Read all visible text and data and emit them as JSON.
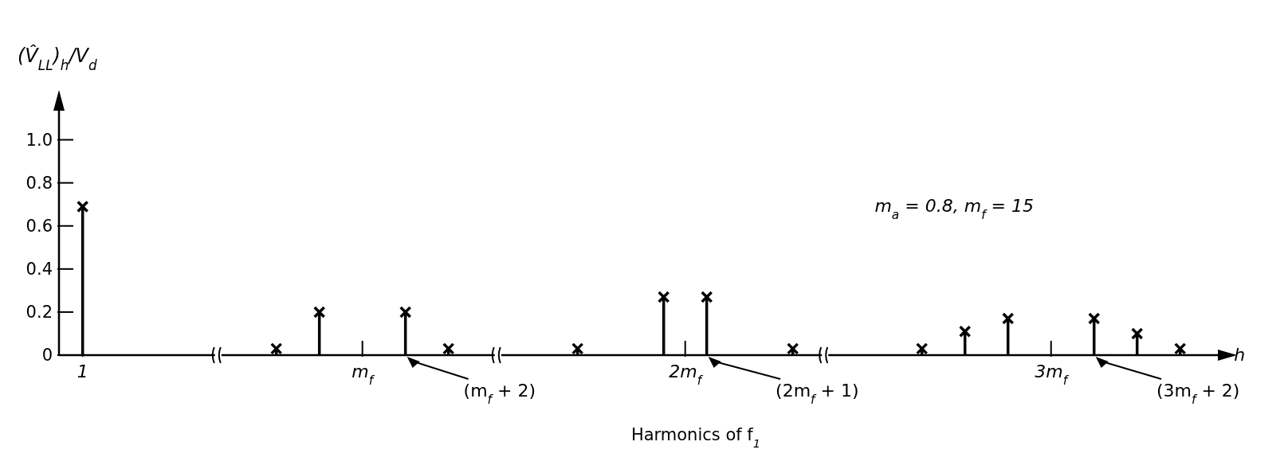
{
  "chart_data": {
    "type": "lollipop",
    "xlabel": "Harmonics of f$_{1}$",
    "ylabel": "(V̂$_{LL}$)$_{h}$/V$_{d}$",
    "categories": [
      "1",
      null,
      null,
      null,
      null,
      null,
      null,
      null,
      null,
      null,
      null,
      null,
      null,
      "m$_{f}$",
      null,
      null,
      null,
      null,
      null,
      null,
      null,
      null,
      null,
      null,
      null,
      null,
      null,
      null,
      "2m$_{f}$",
      null,
      null,
      null,
      null,
      null,
      null,
      null,
      null,
      null,
      null,
      null,
      null,
      null,
      null,
      null,
      null,
      "3m$_{f}$",
      null,
      null,
      null,
      null,
      null,
      null,
      null,
      null
    ],
    "values": [
      0.69,
      null,
      null,
      null,
      null,
      null,
      null,
      null,
      null,
      0.03,
      null,
      0.2,
      null,
      null,
      null,
      0.2,
      null,
      0.03,
      null,
      null,
      null,
      null,
      null,
      0.03,
      null,
      null,
      null,
      0.27,
      null,
      0.27,
      null,
      null,
      null,
      0.03,
      null,
      null,
      null,
      null,
      null,
      0.03,
      null,
      0.11,
      null,
      0.17,
      null,
      null,
      null,
      0.17,
      null,
      0.1,
      null,
      0.03,
      null,
      null
    ],
    "color": "#000000",
    "marker": "cross",
    "ylim": [
      0,
      1.15
    ],
    "yticks": [
      0,
      0.2,
      0.4,
      0.6,
      0.8,
      {
        "value": 1,
        "label": "1.0"
      }
    ],
    "annotations": [
      "m$_{a}$ = 0.8, m$_{f}$ = 15",
      "(m$_{f}$ + 2)",
      "(2m$_{f}$ + 1)",
      "(3m$_{f}$ + 2)",
      "h"
    ]
  }
}
